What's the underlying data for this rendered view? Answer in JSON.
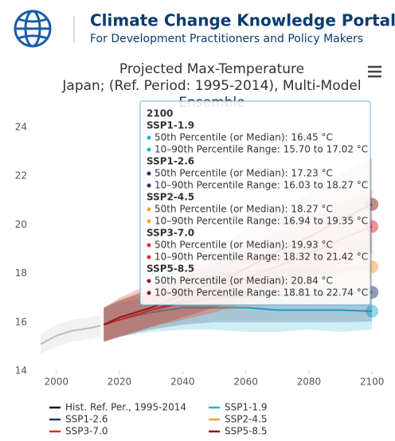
{
  "header": {
    "title": "Climate Change Knowledge Portal",
    "subtitle": "For Development Practitioners and Policy Makers"
  },
  "chart_data": {
    "type": "line",
    "title": [
      "Projected Max-Temperature",
      "Japan; (Ref. Period: 1995-2014), Multi-Model",
      "Ensemble"
    ],
    "xlim": [
      1994,
      2105
    ],
    "xticks": [
      2000,
      2020,
      2040,
      2060,
      2080,
      2100
    ],
    "ylim": [
      14,
      25
    ],
    "yticks": [
      14,
      16,
      18,
      20,
      22,
      24
    ],
    "series": [
      {
        "name": "Hist. Ref. Per., 1995-2014",
        "color": "#1a1a1a",
        "line_color": "#bdbdbd",
        "x": [
          1995,
          2000,
          2005,
          2010,
          2014
        ],
        "values": [
          15.1,
          15.45,
          15.65,
          15.75,
          15.85
        ],
        "lower": [
          14.7,
          15.0,
          15.2,
          15.3,
          15.4
        ],
        "upper": [
          15.5,
          15.9,
          16.1,
          16.2,
          16.3
        ]
      },
      {
        "name": "SSP1-1.9",
        "color": "#1fb3d4",
        "x": [
          2015,
          2020,
          2030,
          2040,
          2050,
          2060,
          2070,
          2080,
          2090,
          2100
        ],
        "values": [
          15.9,
          16.1,
          16.4,
          16.6,
          16.6,
          16.6,
          16.5,
          16.5,
          16.5,
          16.45
        ],
        "lower": [
          15.2,
          15.4,
          15.6,
          15.7,
          15.7,
          15.6,
          15.6,
          15.7,
          15.6,
          15.7
        ],
        "upper": [
          16.6,
          16.8,
          17.1,
          17.2,
          17.2,
          17.1,
          17.0,
          17.0,
          17.0,
          17.02
        ]
      },
      {
        "name": "SSP1-2.6",
        "color": "#1b3a6b",
        "x": [
          2015,
          2020,
          2030,
          2040,
          2050,
          2060,
          2070,
          2080,
          2090,
          2100
        ],
        "values": [
          15.9,
          16.1,
          16.5,
          16.8,
          17.0,
          17.1,
          17.1,
          17.1,
          17.2,
          17.23
        ],
        "lower": [
          15.2,
          15.4,
          15.7,
          15.9,
          16.0,
          16.0,
          16.0,
          16.0,
          16.0,
          16.03
        ],
        "upper": [
          16.6,
          16.9,
          17.3,
          17.7,
          18.0,
          18.1,
          18.2,
          18.2,
          18.3,
          18.27
        ]
      },
      {
        "name": "SSP2-4.5",
        "color": "#f6a031",
        "x": [
          2015,
          2020,
          2030,
          2040,
          2050,
          2060,
          2070,
          2080,
          2090,
          2100
        ],
        "values": [
          15.9,
          16.1,
          16.5,
          16.9,
          17.3,
          17.6,
          17.8,
          18.0,
          18.1,
          18.27
        ],
        "lower": [
          15.2,
          15.4,
          15.8,
          16.1,
          16.4,
          16.6,
          16.7,
          16.8,
          16.9,
          16.94
        ],
        "upper": [
          16.6,
          16.9,
          17.4,
          17.8,
          18.3,
          18.6,
          18.9,
          19.1,
          19.3,
          19.35
        ]
      },
      {
        "name": "SSP3-7.0",
        "color": "#e0282e",
        "x": [
          2015,
          2020,
          2030,
          2040,
          2050,
          2060,
          2070,
          2080,
          2090,
          2100
        ],
        "values": [
          15.9,
          16.1,
          16.5,
          16.9,
          17.3,
          17.8,
          18.3,
          18.8,
          19.4,
          19.93
        ],
        "lower": [
          15.2,
          15.4,
          15.8,
          16.1,
          16.4,
          16.8,
          17.2,
          17.6,
          18.0,
          18.32
        ],
        "upper": [
          16.6,
          16.9,
          17.4,
          17.9,
          18.5,
          19.1,
          19.7,
          20.3,
          20.9,
          21.42
        ]
      },
      {
        "name": "SSP5-8.5",
        "color": "#8b1a1a",
        "x": [
          2015,
          2020,
          2030,
          2040,
          2050,
          2060,
          2070,
          2080,
          2090,
          2100
        ],
        "values": [
          15.9,
          16.2,
          16.6,
          17.1,
          17.6,
          18.2,
          18.9,
          19.5,
          20.2,
          20.84
        ],
        "lower": [
          15.2,
          15.4,
          15.8,
          16.2,
          16.6,
          17.0,
          17.5,
          17.9,
          18.4,
          18.81
        ],
        "upper": [
          16.6,
          17.0,
          17.6,
          18.3,
          19.0,
          19.8,
          20.6,
          21.3,
          22.1,
          22.74
        ]
      }
    ],
    "tooltip": {
      "title": "2100",
      "groups": [
        {
          "name": "SSP1-1.9",
          "lines": [
            "50th Percentile (or Median): 16.45 °C",
            "10–90th Percentile Range: 15.70 to 17.02 °C"
          ]
        },
        {
          "name": "SSP1-2.6",
          "lines": [
            "50th Percentile (or Median): 17.23 °C",
            "10–90th Percentile Range: 16.03 to 18.27 °C"
          ]
        },
        {
          "name": "SSP2-4.5",
          "lines": [
            "50th Percentile (or Median): 18.27 °C",
            "10–90th Percentile Range: 16.94 to 19.35 °C"
          ]
        },
        {
          "name": "SSP3-7.0",
          "lines": [
            "50th Percentile (or Median): 19.93 °C",
            "10–90th Percentile Range: 18.32 to 21.42 °C"
          ]
        },
        {
          "name": "SSP5-8.5",
          "lines": [
            "50th Percentile (or Median): 20.84 °C",
            "10–90th Percentile Range: 18.81 to 22.74 °C"
          ]
        }
      ]
    }
  }
}
